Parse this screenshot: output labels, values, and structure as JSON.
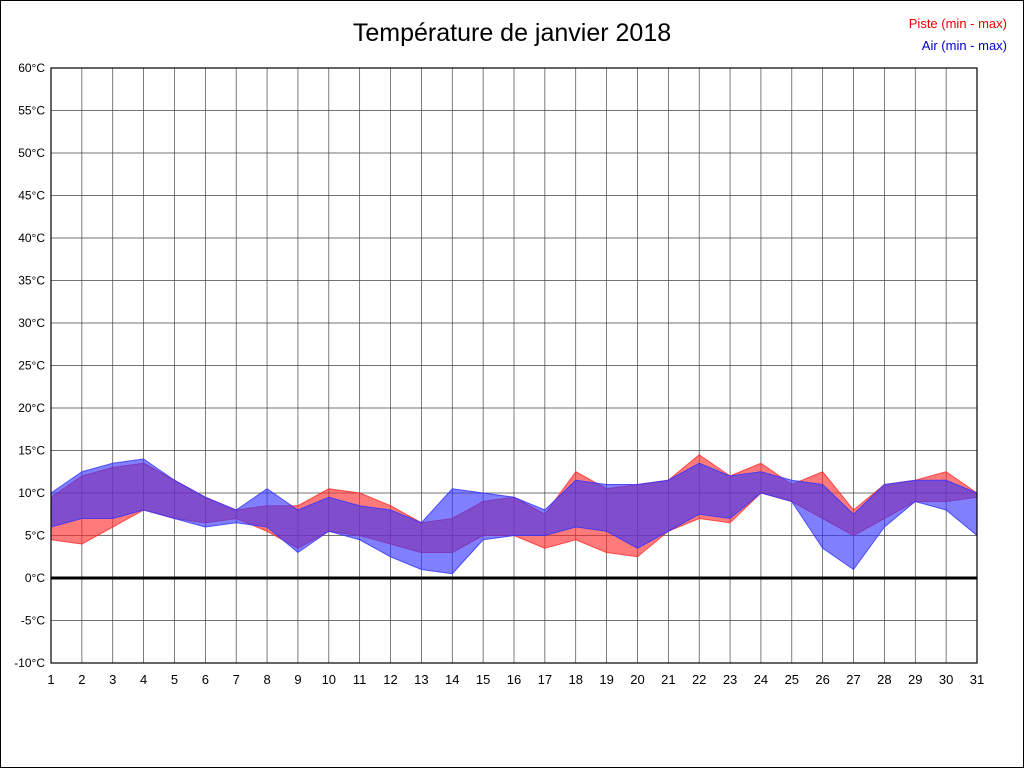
{
  "title": "Température de janvier 2018",
  "legend": {
    "piste_label": "Piste (min - max)",
    "air_label": "Air (min - max)",
    "piste_color": "#ee0000",
    "air_color": "#0000cc"
  },
  "chart_data": {
    "type": "area",
    "title": "Température de janvier 2018",
    "xlabel": "",
    "ylabel": "",
    "x": [
      1,
      2,
      3,
      4,
      5,
      6,
      7,
      8,
      9,
      10,
      11,
      12,
      13,
      14,
      15,
      16,
      17,
      18,
      19,
      20,
      21,
      22,
      23,
      24,
      25,
      26,
      27,
      28,
      29,
      30,
      31
    ],
    "xtick_labels": [
      "1",
      "2",
      "3",
      "4",
      "5",
      "6",
      "7",
      "8",
      "9",
      "10",
      "11",
      "12",
      "13",
      "14",
      "15",
      "16",
      "17",
      "18",
      "19",
      "20",
      "21",
      "22",
      "23",
      "24",
      "25",
      "26",
      "27",
      "28",
      "29",
      "30",
      "31"
    ],
    "ylim": [
      -10,
      60
    ],
    "ytick_values": [
      -10,
      -5,
      0,
      5,
      10,
      15,
      20,
      25,
      30,
      35,
      40,
      45,
      50,
      55,
      60
    ],
    "ytick_labels": [
      "-10°C",
      "-5°C",
      "0°C",
      "5°C",
      "10°C",
      "15°C",
      "20°C",
      "25°C",
      "30°C",
      "35°C",
      "40°C",
      "45°C",
      "50°C",
      "55°C",
      "60°C"
    ],
    "grid": true,
    "zero_line": true,
    "legend_position": "top-right",
    "series": [
      {
        "name": "Piste (min - max)",
        "fill": "#ff2a2a",
        "fill_opacity": 0.62,
        "min": [
          4.5,
          4,
          6,
          8,
          7,
          6.5,
          7,
          5.5,
          3.5,
          5.5,
          5,
          4,
          3,
          3,
          5,
          5,
          3.5,
          4.5,
          3,
          2.5,
          5.5,
          7,
          6.5,
          10,
          9,
          7,
          5,
          7,
          9,
          9,
          9.5
        ],
        "max": [
          9.5,
          12,
          13,
          13.5,
          11.5,
          9.5,
          8,
          8.5,
          8.5,
          10.5,
          10,
          8.5,
          6.5,
          7,
          9,
          9.5,
          7.5,
          12.5,
          10.5,
          11,
          11.5,
          14.5,
          12,
          13.5,
          11,
          12.5,
          8,
          11,
          11.5,
          12.5,
          10
        ]
      },
      {
        "name": "Air (min - max)",
        "fill": "#3232ff",
        "fill_opacity": 0.62,
        "min": [
          6,
          7,
          7,
          8,
          7,
          6,
          6.5,
          6,
          3,
          5.5,
          4.5,
          2.5,
          1,
          0.5,
          4.5,
          5,
          5,
          6,
          5.5,
          3.5,
          5.5,
          7.5,
          7,
          10,
          9,
          3.5,
          1,
          6,
          9,
          8,
          5
        ],
        "max": [
          10,
          12.5,
          13.5,
          14,
          11.5,
          9.5,
          8,
          10.5,
          8,
          9.5,
          8.5,
          8,
          6.5,
          10.5,
          10,
          9.5,
          8,
          11.5,
          11,
          11,
          11.5,
          13.5,
          12,
          12.5,
          11.5,
          11,
          7.5,
          11,
          11.5,
          11.5,
          10
        ]
      }
    ]
  }
}
